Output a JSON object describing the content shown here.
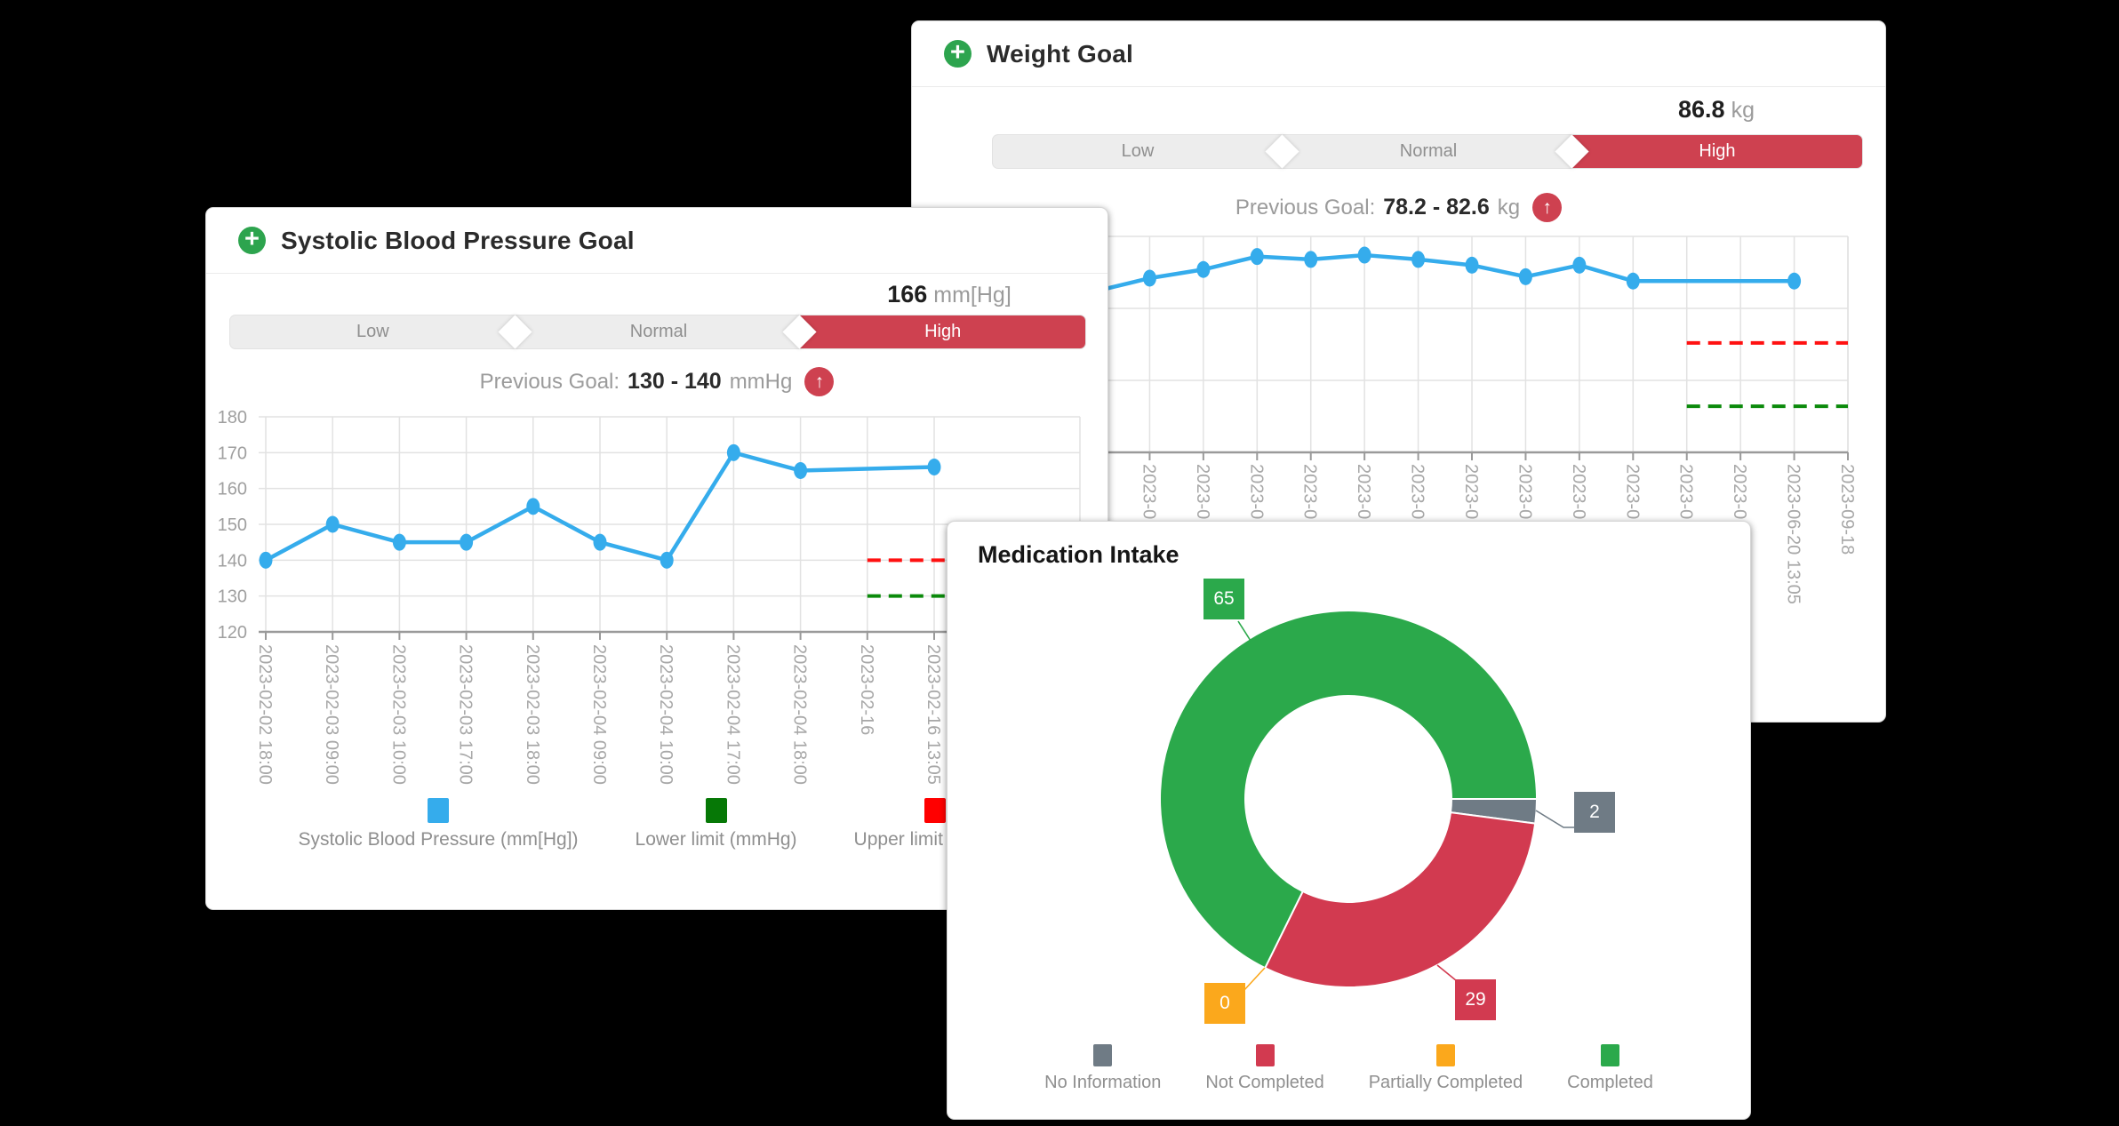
{
  "page": {
    "background": "#000000"
  },
  "weight_card": {
    "header": {
      "icon_glyph": "+",
      "title": "Weight Goal"
    },
    "current": {
      "value": "86.8",
      "unit": "kg"
    },
    "gauge": {
      "segments": [
        "Low",
        "Normal",
        "High"
      ],
      "active_segment": "High",
      "active_color": "#CE4150"
    },
    "previous_goal": {
      "label": "Previous Goal:",
      "range": "78.2 - 82.6",
      "unit": "kg",
      "trend_icon": "↑"
    }
  },
  "sbp_card": {
    "header": {
      "icon_glyph": "+",
      "title": "Systolic Blood Pressure Goal"
    },
    "current": {
      "value": "166",
      "unit": "mm[Hg]"
    },
    "gauge": {
      "segments": [
        "Low",
        "Normal",
        "High"
      ],
      "active_segment": "High",
      "active_color": "#CE4150"
    },
    "previous_goal": {
      "label": "Previous Goal:",
      "range": "130 - 140",
      "unit": "mmHg",
      "trend_icon": "↑"
    },
    "legend": [
      {
        "label": "Systolic Blood Pressure (mm[Hg])",
        "color": "#35ACEC"
      },
      {
        "label": "Lower limit (mmHg)",
        "color": "#067806"
      },
      {
        "label": "Upper limit (mmHg)",
        "color": "#FF0000"
      }
    ]
  },
  "medication_card": {
    "title": "Medication Intake"
  },
  "chart_data": [
    {
      "id": "sbp",
      "type": "line",
      "line_color": "#35ACEC",
      "ylim": [
        120,
        180
      ],
      "yticks": [
        180,
        170,
        160,
        150,
        140,
        130,
        120
      ],
      "y_labels_visible": true,
      "x_labels": [
        "2023-02-02 18:00",
        "2023-02-03 09:00",
        "2023-02-03 10:00",
        "2023-02-03 17:00",
        "2023-02-03 18:00",
        "2023-02-04 09:00",
        "2023-02-04 10:00",
        "2023-02-04 17:00",
        "2023-02-04 18:00",
        "2023-02-16",
        "2023-02-16 13:05"
      ],
      "values": [
        140,
        150,
        145,
        145,
        155,
        145,
        140,
        170,
        165,
        null,
        166
      ],
      "upper_limit": {
        "value": 140,
        "color": "#FF1111",
        "from_index": 9
      },
      "lower_limit": {
        "value": 130,
        "color": "#0B8A0B",
        "from_index": 9
      }
    },
    {
      "id": "weight",
      "type": "line",
      "line_color": "#35ACEC",
      "ylim": [
        75,
        90
      ],
      "yticks": [
        90,
        85,
        80,
        75
      ],
      "y_labels_visible": false,
      "x_labels": [
        "2023-0",
        "2023-0",
        "2023-0",
        "2023-0",
        "2023-0",
        "2023-0",
        "2023-0",
        "2023-0",
        "2023-0",
        "2023-0",
        "2023-0",
        "2023-0",
        "2023-06-20 13:05",
        "2023-09-18"
      ],
      "values": [
        87.1,
        87.7,
        88.6,
        88.4,
        88.7,
        88.4,
        88.0,
        87.2,
        88.0,
        86.9,
        null,
        null,
        86.9,
        null
      ],
      "edge_value": 86.2,
      "upper_limit": {
        "value": 82.6,
        "color": "#FF1111",
        "from_index": 10
      },
      "lower_limit": {
        "value": 78.2,
        "color": "#0B8A0B",
        "from_index": 10
      }
    },
    {
      "id": "medication",
      "type": "pie",
      "start_angle_deg": 0,
      "direction": "clockwise",
      "slices": [
        {
          "label": "No Information",
          "value": 2,
          "color": "#6F7B85"
        },
        {
          "label": "Not Completed",
          "value": 29,
          "color": "#D23A50"
        },
        {
          "label": "Partially Completed",
          "value": 0,
          "color": "#FBA81C"
        },
        {
          "label": "Completed",
          "value": 65,
          "color": "#2BA94B"
        }
      ]
    }
  ]
}
